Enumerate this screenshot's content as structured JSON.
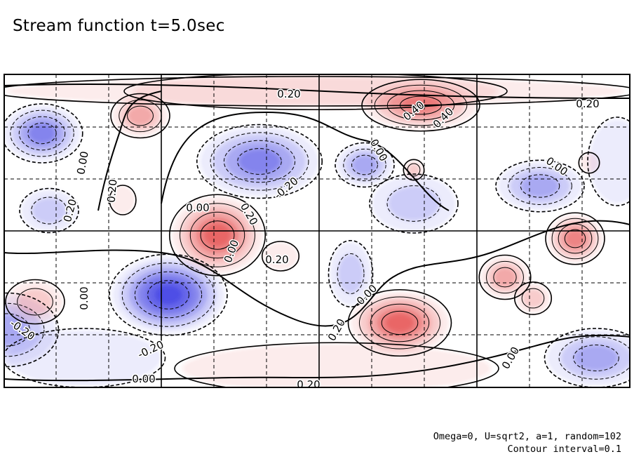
{
  "chart_data": {
    "type": "contour",
    "title": "Stream function t=5.0sec",
    "contour_interval": 0.1,
    "contour_labels": [
      {
        "value": "0.20"
      },
      {
        "value": "0.20"
      },
      {
        "value": "0.40"
      },
      {
        "value": "0.00"
      },
      {
        "value": "0.00"
      },
      {
        "value": "0.20"
      },
      {
        "value": "0.20"
      },
      {
        "value": "-0.20"
      },
      {
        "value": "0.00"
      },
      {
        "value": "0.20"
      },
      {
        "value": "0.00"
      },
      {
        "value": "0.00"
      },
      {
        "value": "0.40"
      },
      {
        "value": "0.00"
      },
      {
        "value": "0.20"
      },
      {
        "value": "0.00"
      },
      {
        "value": "-0.20"
      },
      {
        "value": "-0.20"
      },
      {
        "value": "0.00"
      },
      {
        "value": "0.20"
      },
      {
        "value": "0.00"
      },
      {
        "value": "0.20"
      }
    ],
    "colors": {
      "positive": "#e03030",
      "negative": "#3030e0",
      "neutral": "#ffffff"
    },
    "footnotes": [
      "Omega=0, U=sqrt2, a=1, random=102",
      "Contour interval=0.1"
    ]
  }
}
